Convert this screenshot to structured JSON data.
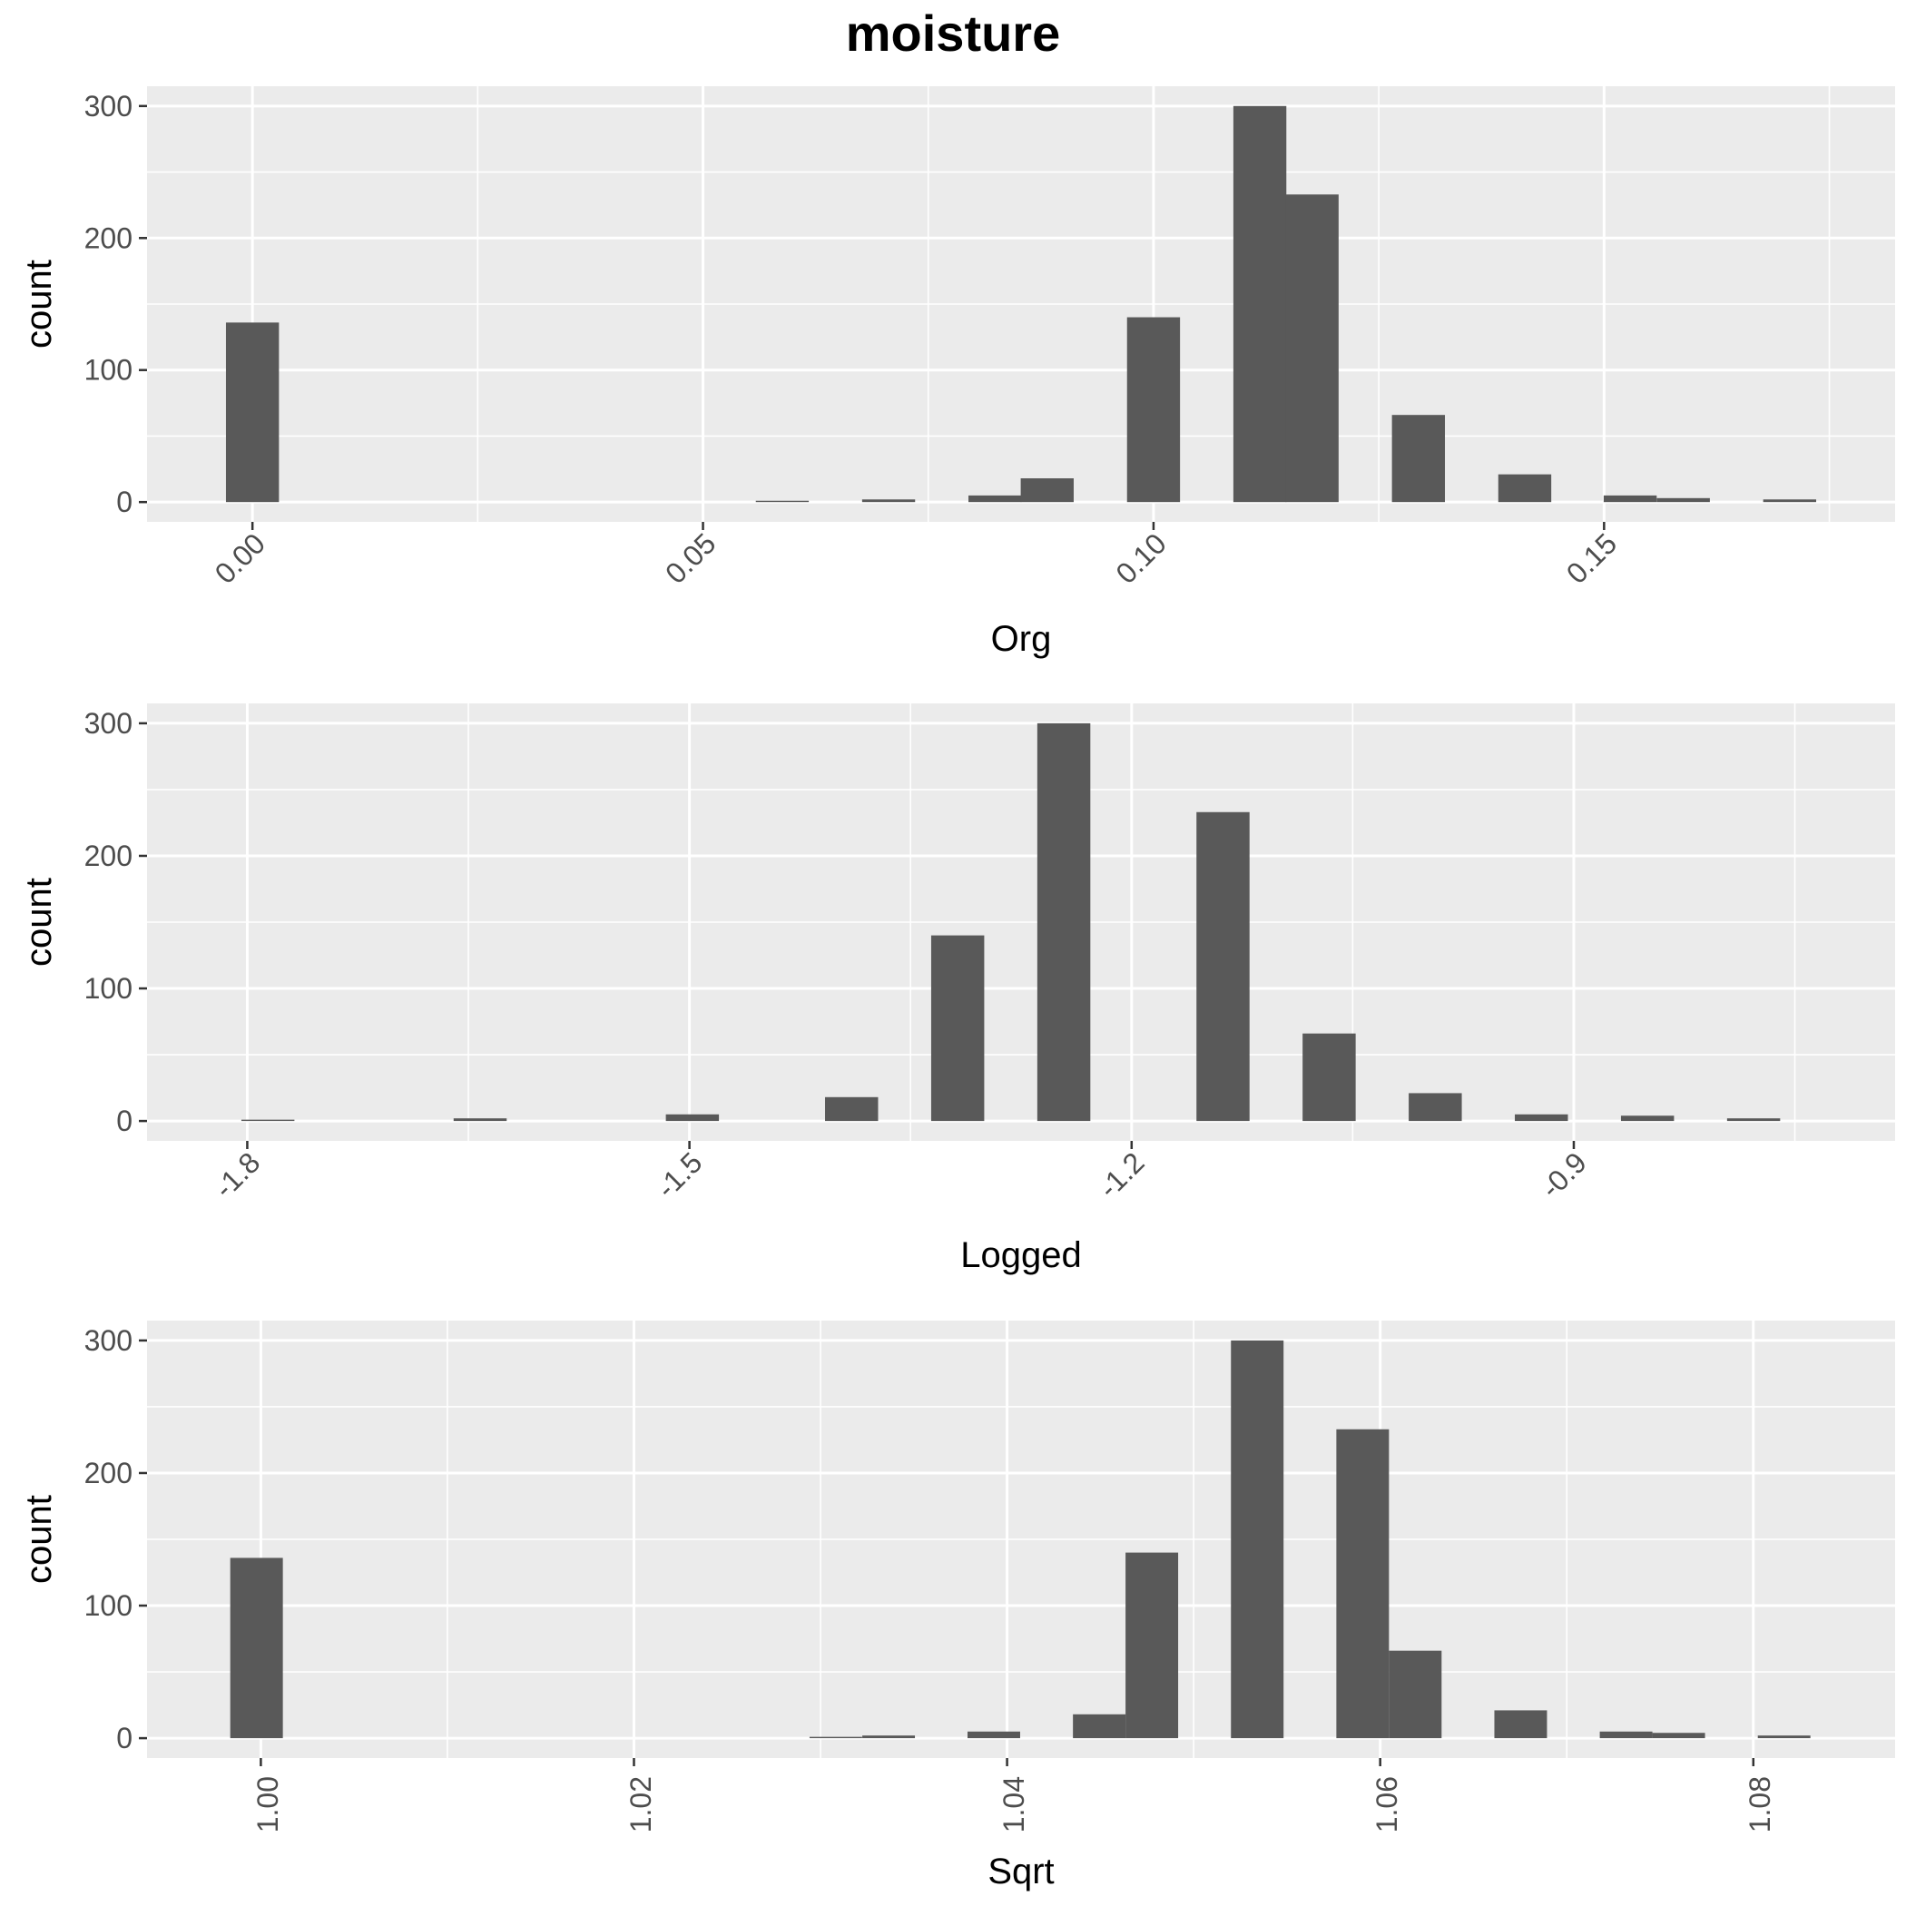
{
  "title": "moisture",
  "chart_data": [
    {
      "type": "bar",
      "xlabel": "Org",
      "ylabel": "count",
      "xlim": [
        -0.0117,
        0.1823
      ],
      "ylim": [
        -15,
        315
      ],
      "y_ticks": [
        0,
        100,
        200,
        300
      ],
      "x_ticks": [
        0.0,
        0.05,
        0.1,
        0.15
      ],
      "x_tick_labels": [
        "0.00",
        "0.05",
        "0.10",
        "0.15"
      ],
      "x_tick_rotation": 45,
      "bin_width": 0.00588,
      "bins": [
        {
          "x": 0.0,
          "count": 136
        },
        {
          "x": 0.0588,
          "count": 1
        },
        {
          "x": 0.0706,
          "count": 2
        },
        {
          "x": 0.0824,
          "count": 5
        },
        {
          "x": 0.0882,
          "count": 18
        },
        {
          "x": 0.1,
          "count": 140
        },
        {
          "x": 0.1118,
          "count": 300
        },
        {
          "x": 0.1176,
          "count": 233
        },
        {
          "x": 0.1294,
          "count": 66
        },
        {
          "x": 0.1412,
          "count": 21
        },
        {
          "x": 0.1529,
          "count": 5
        },
        {
          "x": 0.1588,
          "count": 3
        },
        {
          "x": 0.1706,
          "count": 2
        }
      ]
    },
    {
      "type": "bar",
      "xlabel": "Logged",
      "ylabel": "count",
      "xlim": [
        -1.868,
        -0.682
      ],
      "ylim": [
        -15,
        315
      ],
      "y_ticks": [
        0,
        100,
        200,
        300
      ],
      "x_ticks": [
        -1.8,
        -1.5,
        -1.2,
        -0.9
      ],
      "x_tick_labels": [
        "-1.8",
        "-1.5",
        "-1.2",
        "-0.9"
      ],
      "x_tick_rotation": 45,
      "bin_width": 0.036,
      "bins": [
        {
          "x": -1.786,
          "count": 1
        },
        {
          "x": -1.642,
          "count": 2
        },
        {
          "x": -1.498,
          "count": 5
        },
        {
          "x": -1.39,
          "count": 18
        },
        {
          "x": -1.318,
          "count": 140
        },
        {
          "x": -1.246,
          "count": 300
        },
        {
          "x": -1.138,
          "count": 233
        },
        {
          "x": -1.066,
          "count": 66
        },
        {
          "x": -0.994,
          "count": 21
        },
        {
          "x": -0.922,
          "count": 5
        },
        {
          "x": -0.85,
          "count": 4
        },
        {
          "x": -0.778,
          "count": 2
        }
      ]
    },
    {
      "type": "bar",
      "xlabel": "Sqrt",
      "ylabel": "count",
      "xlim": [
        0.9939,
        1.0876
      ],
      "ylim": [
        -15,
        315
      ],
      "y_ticks": [
        0,
        100,
        200,
        300
      ],
      "x_ticks": [
        1.0,
        1.02,
        1.04,
        1.06,
        1.08
      ],
      "x_tick_labels": [
        "1.00",
        "1.02",
        "1.04",
        "1.06",
        "1.08"
      ],
      "x_tick_rotation": 90,
      "bin_width": 0.00282,
      "bins": [
        {
          "x": 0.99977,
          "count": 136
        },
        {
          "x": 1.03082,
          "count": 1
        },
        {
          "x": 1.03365,
          "count": 2
        },
        {
          "x": 1.03929,
          "count": 5
        },
        {
          "x": 1.04494,
          "count": 18
        },
        {
          "x": 1.04776,
          "count": 140
        },
        {
          "x": 1.05341,
          "count": 300
        },
        {
          "x": 1.05906,
          "count": 233
        },
        {
          "x": 1.06188,
          "count": 66
        },
        {
          "x": 1.06753,
          "count": 21
        },
        {
          "x": 1.07318,
          "count": 5
        },
        {
          "x": 1.076,
          "count": 4
        },
        {
          "x": 1.08165,
          "count": 2
        }
      ]
    }
  ]
}
